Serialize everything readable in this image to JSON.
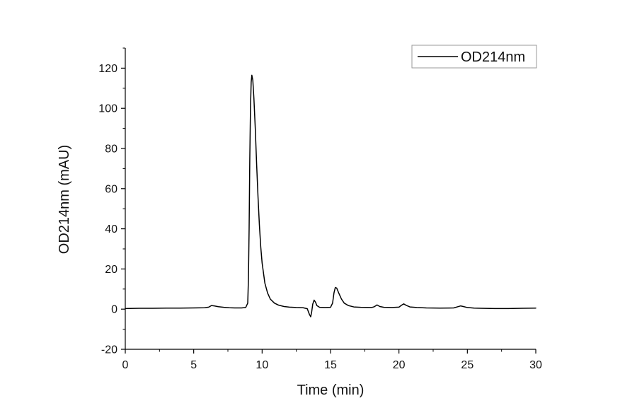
{
  "chart_data": {
    "type": "line",
    "xlabel": "Time (min)",
    "ylabel": "OD214nm (mAU)",
    "xlim": [
      0,
      30
    ],
    "ylim": [
      -20,
      130
    ],
    "x_ticks": [
      0,
      5,
      10,
      15,
      20,
      25,
      30
    ],
    "x_tick_labels": [
      "0",
      "5",
      "10",
      "15",
      "20",
      "25",
      "30"
    ],
    "y_ticks": [
      -20,
      0,
      20,
      40,
      60,
      80,
      100,
      120
    ],
    "y_tick_labels": [
      "-20",
      "0",
      "20",
      "40",
      "60",
      "80",
      "100",
      "120"
    ],
    "grid": false,
    "legend_position": "top-right",
    "series": [
      {
        "name": "OD214nm",
        "color": "#000000",
        "points": [
          [
            0,
            0.3
          ],
          [
            1,
            0.4
          ],
          [
            2,
            0.4
          ],
          [
            3,
            0.5
          ],
          [
            4,
            0.5
          ],
          [
            5,
            0.6
          ],
          [
            5.8,
            0.7
          ],
          [
            6.1,
            1.0
          ],
          [
            6.3,
            1.8
          ],
          [
            6.5,
            1.6
          ],
          [
            6.8,
            1.2
          ],
          [
            7.2,
            0.9
          ],
          [
            7.6,
            0.7
          ],
          [
            8.0,
            0.6
          ],
          [
            8.5,
            0.6
          ],
          [
            8.8,
            0.8
          ],
          [
            8.95,
            3
          ],
          [
            9.0,
            15
          ],
          [
            9.05,
            40
          ],
          [
            9.1,
            75
          ],
          [
            9.15,
            100
          ],
          [
            9.2,
            113
          ],
          [
            9.25,
            116.5
          ],
          [
            9.32,
            114
          ],
          [
            9.4,
            105
          ],
          [
            9.5,
            90
          ],
          [
            9.6,
            72
          ],
          [
            9.7,
            56
          ],
          [
            9.8,
            42
          ],
          [
            9.9,
            31
          ],
          [
            10.0,
            23
          ],
          [
            10.2,
            13
          ],
          [
            10.4,
            8
          ],
          [
            10.6,
            5
          ],
          [
            10.9,
            3
          ],
          [
            11.2,
            2
          ],
          [
            11.6,
            1.3
          ],
          [
            12.0,
            1.0
          ],
          [
            12.5,
            0.8
          ],
          [
            13.0,
            0.7
          ],
          [
            13.3,
            0.2
          ],
          [
            13.45,
            -2.5
          ],
          [
            13.55,
            -3.8
          ],
          [
            13.62,
            -1.5
          ],
          [
            13.7,
            2.5
          ],
          [
            13.8,
            4.5
          ],
          [
            13.9,
            3.5
          ],
          [
            14.0,
            1.8
          ],
          [
            14.2,
            0.9
          ],
          [
            14.6,
            0.8
          ],
          [
            15.0,
            0.9
          ],
          [
            15.15,
            3
          ],
          [
            15.25,
            8
          ],
          [
            15.35,
            10.8
          ],
          [
            15.45,
            10.5
          ],
          [
            15.6,
            8
          ],
          [
            15.8,
            5
          ],
          [
            16.0,
            3
          ],
          [
            16.3,
            1.8
          ],
          [
            16.7,
            1.1
          ],
          [
            17.2,
            0.9
          ],
          [
            18.0,
            0.8
          ],
          [
            18.2,
            1.2
          ],
          [
            18.4,
            2.1
          ],
          [
            18.6,
            1.3
          ],
          [
            18.9,
            0.9
          ],
          [
            19.5,
            0.8
          ],
          [
            20.0,
            1.0
          ],
          [
            20.2,
            2.0
          ],
          [
            20.35,
            2.6
          ],
          [
            20.5,
            2.0
          ],
          [
            20.8,
            1.1
          ],
          [
            21.3,
            0.8
          ],
          [
            22,
            0.6
          ],
          [
            23,
            0.5
          ],
          [
            24.0,
            0.6
          ],
          [
            24.3,
            1.2
          ],
          [
            24.5,
            1.6
          ],
          [
            24.7,
            1.3
          ],
          [
            25.0,
            0.8
          ],
          [
            25.5,
            0.5
          ],
          [
            26,
            0.4
          ],
          [
            27,
            0.3
          ],
          [
            28,
            0.3
          ],
          [
            29,
            0.4
          ],
          [
            30,
            0.5
          ]
        ]
      }
    ]
  }
}
